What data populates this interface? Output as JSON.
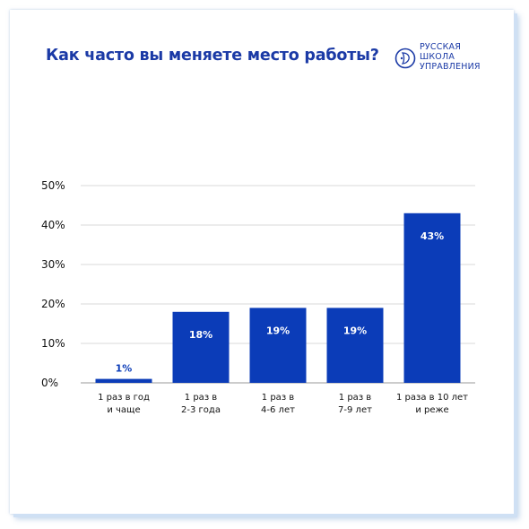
{
  "title": "Как часто вы меняете место работы?",
  "logo": {
    "lines": [
      "РУССКАЯ",
      "ШКОЛА",
      "УПРАВЛЕНИЯ"
    ]
  },
  "colors": {
    "bar": "#0b3cb8",
    "title": "#1b3aa6",
    "grid": "#d9d9d9",
    "label_inside": "#ffffff",
    "label_outside": "#0b3cb8"
  },
  "chart_data": {
    "type": "bar",
    "categories": [
      [
        "1 раз в год",
        "и чаще"
      ],
      [
        "1 раз в",
        "2-3 года"
      ],
      [
        "1 раз в",
        "4-6 лет"
      ],
      [
        "1 раз в",
        "7-9 лет"
      ],
      [
        "1 раза в 10 лет",
        "и реже"
      ]
    ],
    "values": [
      1,
      18,
      19,
      19,
      43
    ],
    "data_labels": [
      "1%",
      "18%",
      "19%",
      "19%",
      "43%"
    ],
    "y_ticks": [
      0,
      10,
      20,
      30,
      40,
      50
    ],
    "y_tick_labels": [
      "0%",
      "10%",
      "20%",
      "30%",
      "40%",
      "50%"
    ],
    "ylim": [
      0,
      50
    ],
    "grid": true,
    "legend": false
  }
}
